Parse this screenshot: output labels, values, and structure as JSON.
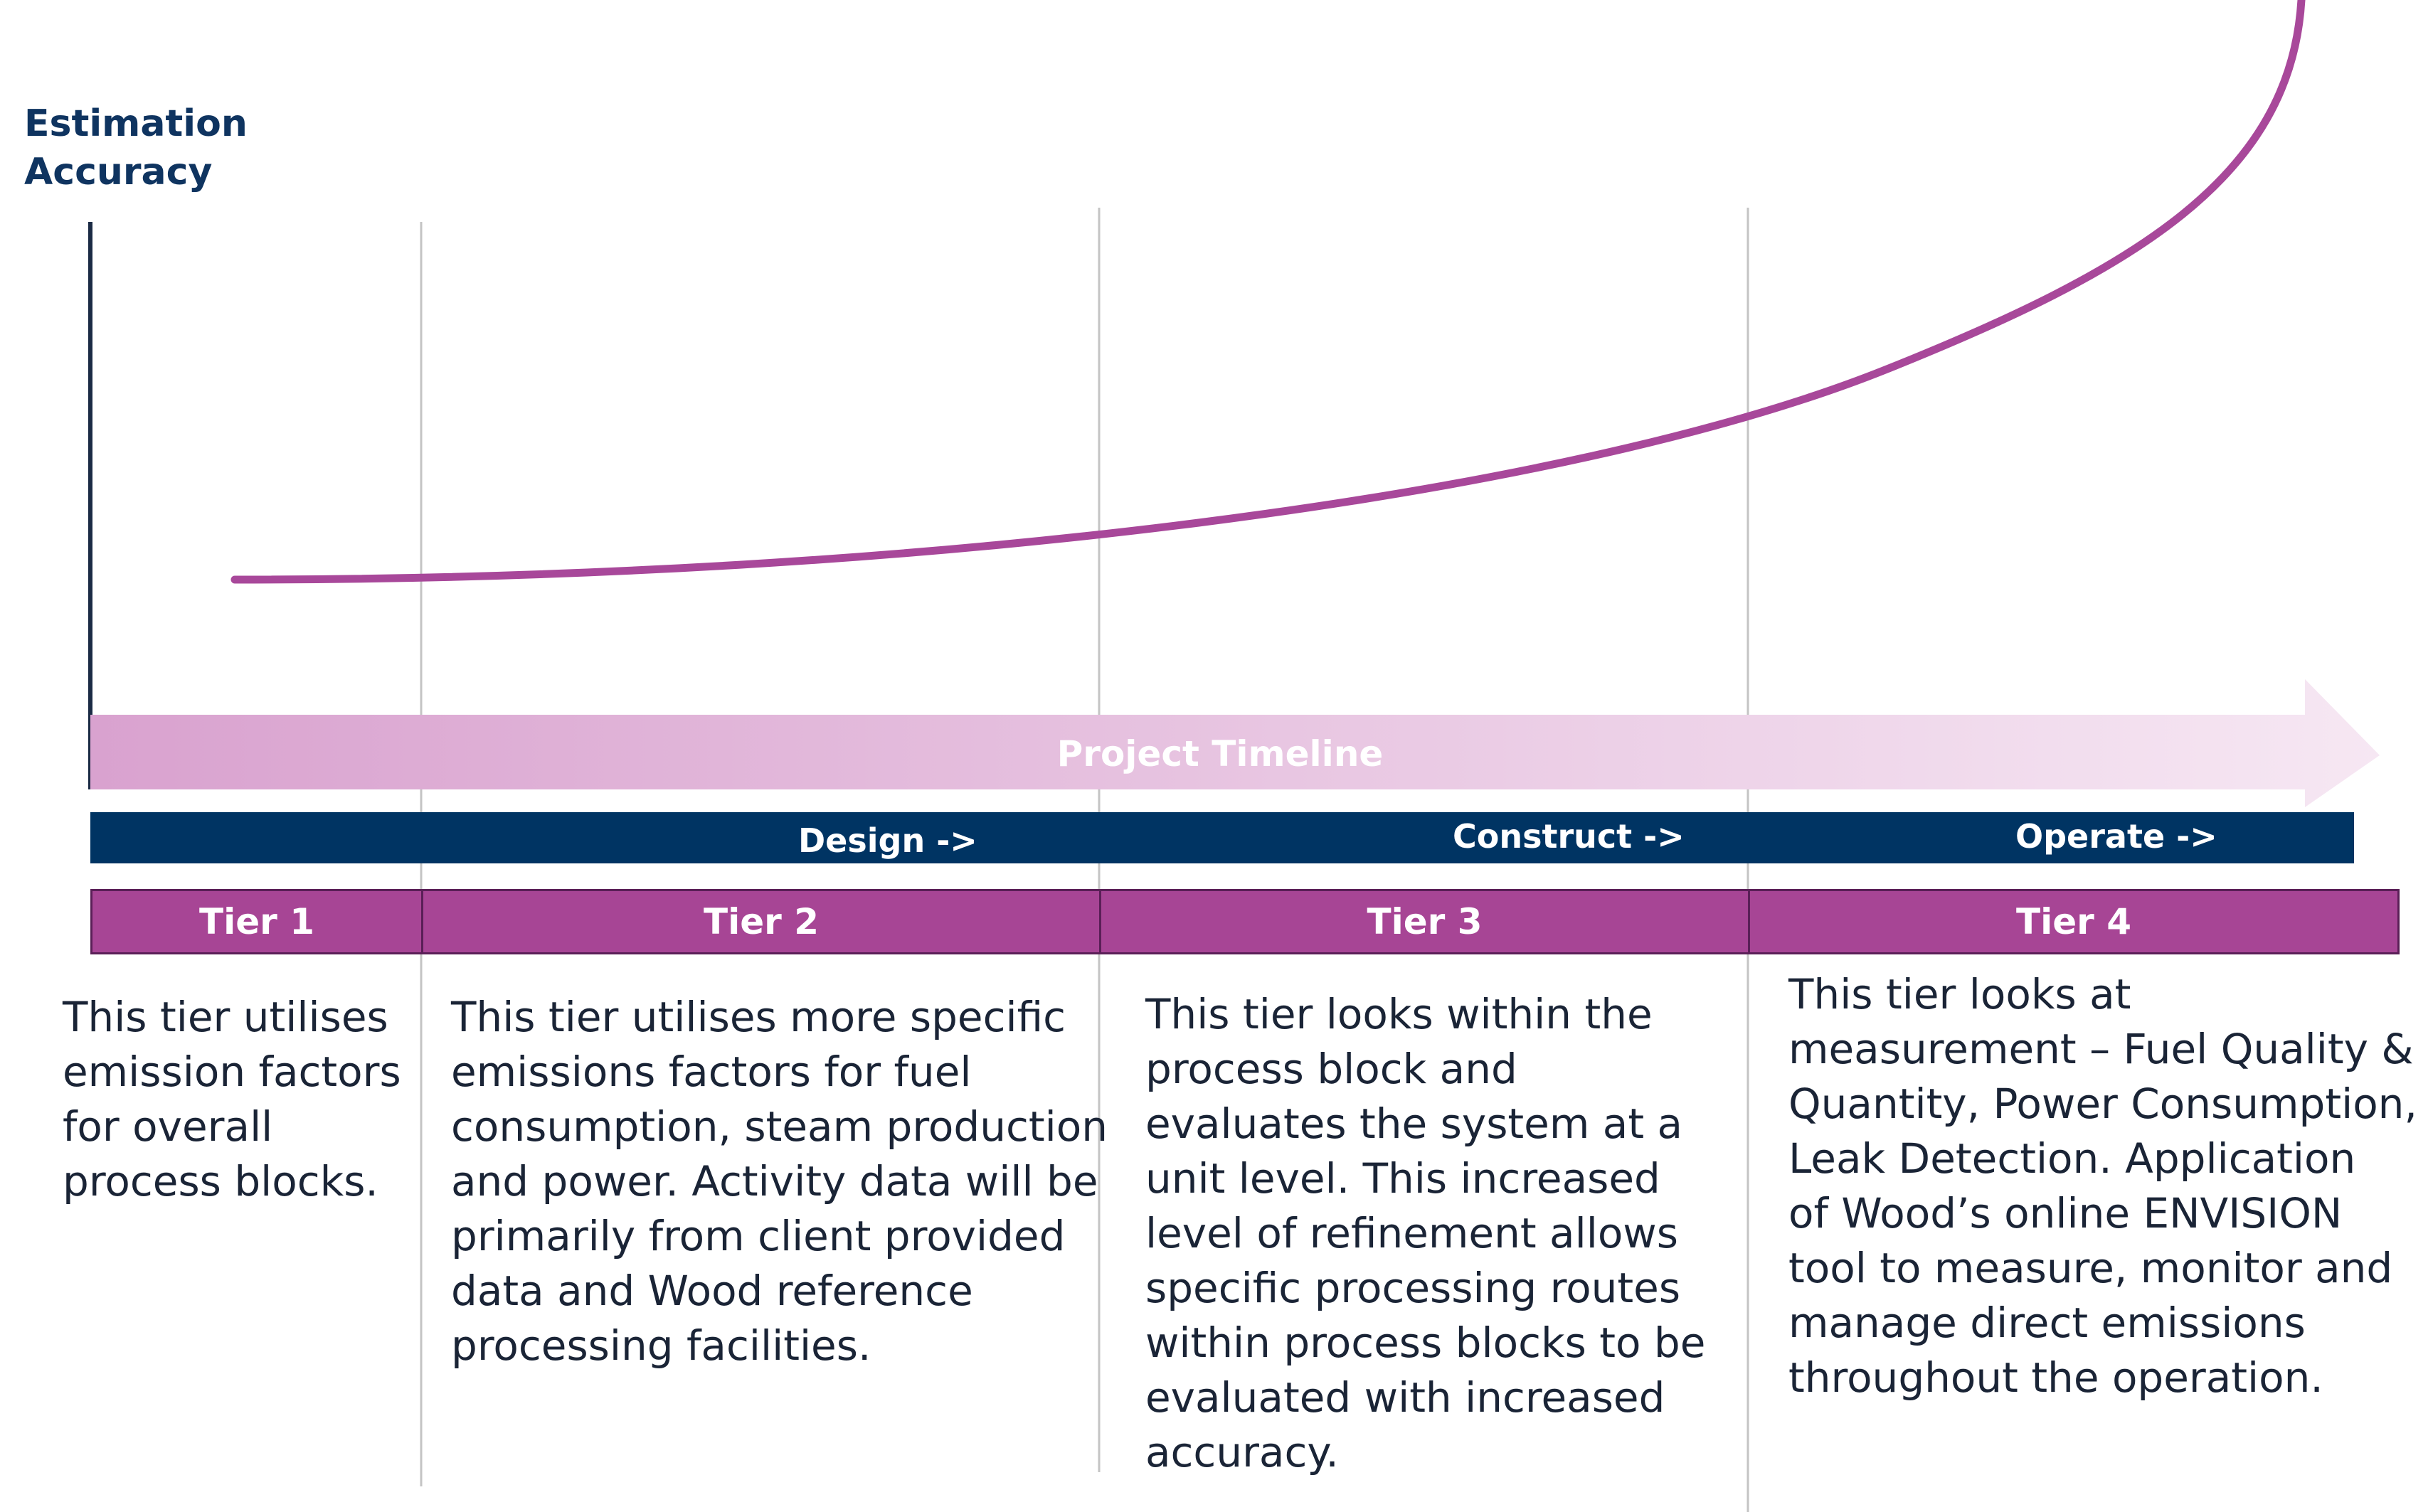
{
  "axis": {
    "y_title_lines": [
      "Estimation",
      "Accuracy"
    ]
  },
  "timeline": {
    "label": "Project Timeline"
  },
  "phases": [
    {
      "label": "Design ->"
    },
    {
      "label": "Construct ->"
    },
    {
      "label": "Operate ->"
    }
  ],
  "tiers": [
    {
      "label": "Tier 1",
      "description_lines": [
        "This tier utilises",
        "emission factors",
        "for overall",
        "process blocks."
      ]
    },
    {
      "label": "Tier 2",
      "description_lines": [
        "This tier utilises more specific",
        "emissions factors for fuel",
        "consumption, steam production",
        "and power. Activity data will be",
        "primarily from client provided",
        "data and Wood reference",
        "processing facilities."
      ]
    },
    {
      "label": "Tier 3",
      "description_lines": [
        "This tier looks within the",
        "process block and",
        "evaluates the system at a",
        "unit level. This increased",
        "level of refinement allows",
        "specific processing routes",
        "within process blocks to be",
        "evaluated with increased",
        "accuracy."
      ]
    },
    {
      "label": "Tier 4",
      "description_lines": [
        "This tier looks at",
        "measurement – Fuel Quality &",
        "Quantity, Power Consumption,",
        "Leak Detection.  Application",
        "of Wood’s online ENVISION",
        "tool to measure, monitor and",
        "manage direct emissions",
        "throughout the operation."
      ]
    }
  ],
  "colors": {
    "curve": "#a8489a",
    "navy": "#003463",
    "tier_fill": "#a74595",
    "tier_border": "#5a1f57",
    "arrow_start": "#d9a2cf",
    "arrow_end": "#f6e7f3",
    "divider": "#c4c4c4"
  }
}
